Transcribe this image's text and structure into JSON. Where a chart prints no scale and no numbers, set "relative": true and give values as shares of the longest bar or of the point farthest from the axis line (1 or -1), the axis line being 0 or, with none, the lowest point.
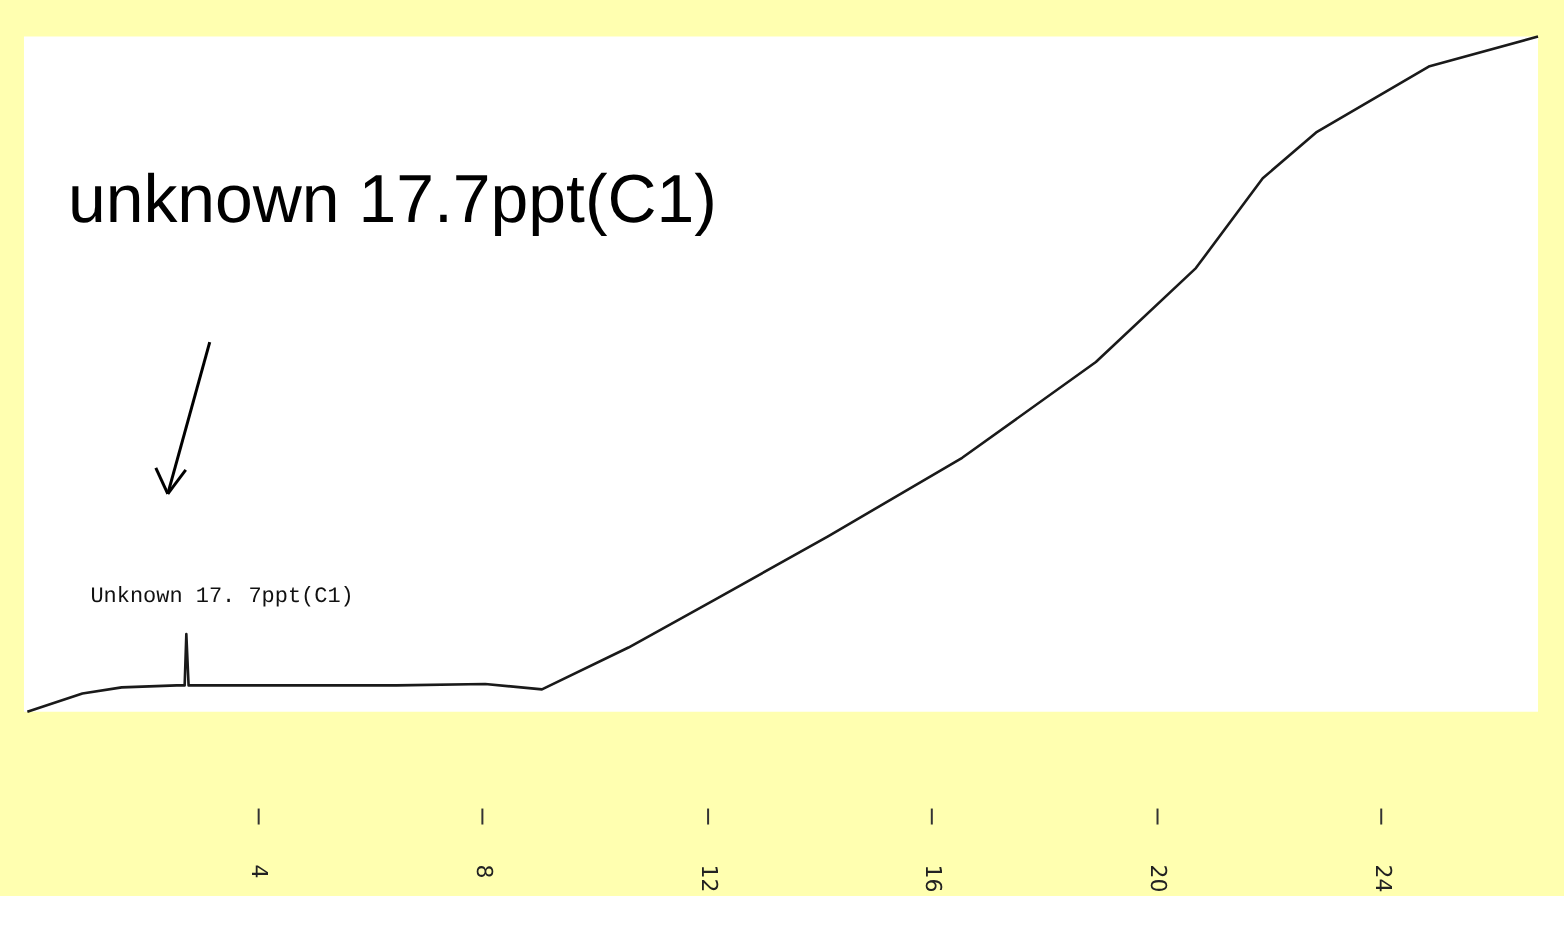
{
  "chart_data": {
    "type": "line",
    "relative": true,
    "x": [
      -0.09,
      0.89,
      1.59,
      2.57,
      2.71,
      2.74,
      2.78,
      4.73,
      6.48,
      8.06,
      9.07,
      10.61,
      12.15,
      14.17,
      16.55,
      18.93,
      20.71,
      21.9,
      22.85,
      24.87,
      26.8
    ],
    "series": [
      {
        "color": "#1a1a1a",
        "values": [
          0,
          0.027,
          0.036,
          0.039,
          0.039,
          0.115,
          0.039,
          0.039,
          0.039,
          0.041,
          0.033,
          0.095,
          0.166,
          0.26,
          0.376,
          0.518,
          0.657,
          0.79,
          0.858,
          0.956,
          1.0
        ]
      }
    ],
    "xlim": [
      -0.15,
      26.8
    ],
    "xticks": [
      4,
      8,
      12,
      16,
      20,
      24
    ],
    "tick_labels": "x",
    "grid": false,
    "legend": false,
    "marker": "none",
    "line_style": "solid",
    "annotations": [
      "unknown 17.7ppt(C1)",
      {
        "text": "Unknown 17. 7ppt(C1)",
        "x": 2.74,
        "y": 0.115
      }
    ]
  }
}
